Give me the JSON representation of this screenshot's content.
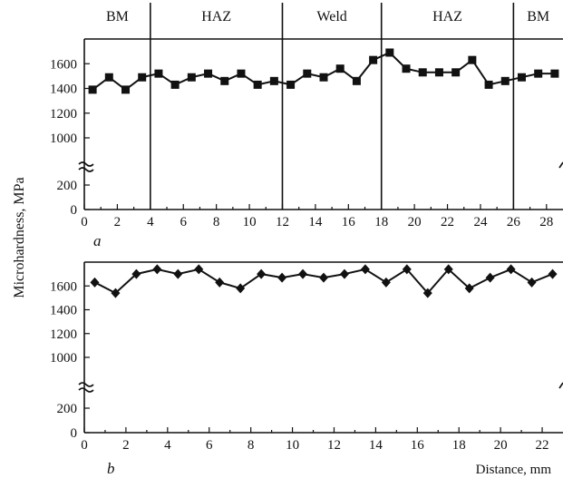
{
  "chart_data": [
    {
      "type": "line",
      "panel_label": "a",
      "marker": "square",
      "xlabel": "",
      "xlim": [
        0,
        29
      ],
      "x_ticks": [
        0,
        2,
        4,
        6,
        8,
        10,
        12,
        14,
        16,
        18,
        20,
        22,
        24,
        26,
        28
      ],
      "y_ticks": [
        0,
        200,
        1000,
        1200,
        1400,
        1600
      ],
      "y_break": true,
      "zones": [
        {
          "label": "BM",
          "from": 0,
          "to": 4
        },
        {
          "label": "HAZ",
          "from": 4,
          "to": 12
        },
        {
          "label": "Weld",
          "from": 12,
          "to": 18
        },
        {
          "label": "HAZ",
          "from": 18,
          "to": 26
        },
        {
          "label": "BM",
          "from": 26,
          "to": 29
        }
      ],
      "boundaries": [
        4,
        12,
        18,
        26
      ],
      "x": [
        0.5,
        1.5,
        2.5,
        3.5,
        4.5,
        5.5,
        6.5,
        7.5,
        8.5,
        9.5,
        10.5,
        11.5,
        12.5,
        13.5,
        14.5,
        15.5,
        16.5,
        17.5,
        18.5,
        19.5,
        20.5,
        21.5,
        22.5,
        23.5,
        24.5,
        25.5,
        26.5,
        27.5,
        28.5
      ],
      "values": [
        1390,
        1490,
        1390,
        1490,
        1520,
        1430,
        1490,
        1520,
        1460,
        1520,
        1430,
        1460,
        1430,
        1520,
        1490,
        1560,
        1460,
        1630,
        1690,
        1560,
        1530,
        1530,
        1530,
        1630,
        1430,
        1460,
        1490,
        1520,
        1520
      ]
    },
    {
      "type": "line",
      "panel_label": "b",
      "marker": "diamond",
      "xlabel": "Distance, mm",
      "xlim": [
        0,
        23
      ],
      "x_ticks": [
        0,
        2,
        4,
        6,
        8,
        10,
        12,
        14,
        16,
        18,
        20,
        22
      ],
      "y_ticks": [
        0,
        200,
        1000,
        1200,
        1400,
        1600
      ],
      "y_break": true,
      "x": [
        0.5,
        1.5,
        2.5,
        3.5,
        4.5,
        5.5,
        6.5,
        7.5,
        8.5,
        9.5,
        10.5,
        11.5,
        12.5,
        13.5,
        14.5,
        15.5,
        16.5,
        17.5,
        18.5,
        19.5,
        20.5,
        21.5,
        22.5
      ],
      "values": [
        1630,
        1540,
        1700,
        1740,
        1700,
        1740,
        1630,
        1580,
        1700,
        1670,
        1700,
        1670,
        1700,
        1740,
        1630,
        1740,
        1540,
        1740,
        1580,
        1670,
        1740,
        1630,
        1700
      ]
    }
  ],
  "shared_ylabel": "Microhardness, MPa"
}
